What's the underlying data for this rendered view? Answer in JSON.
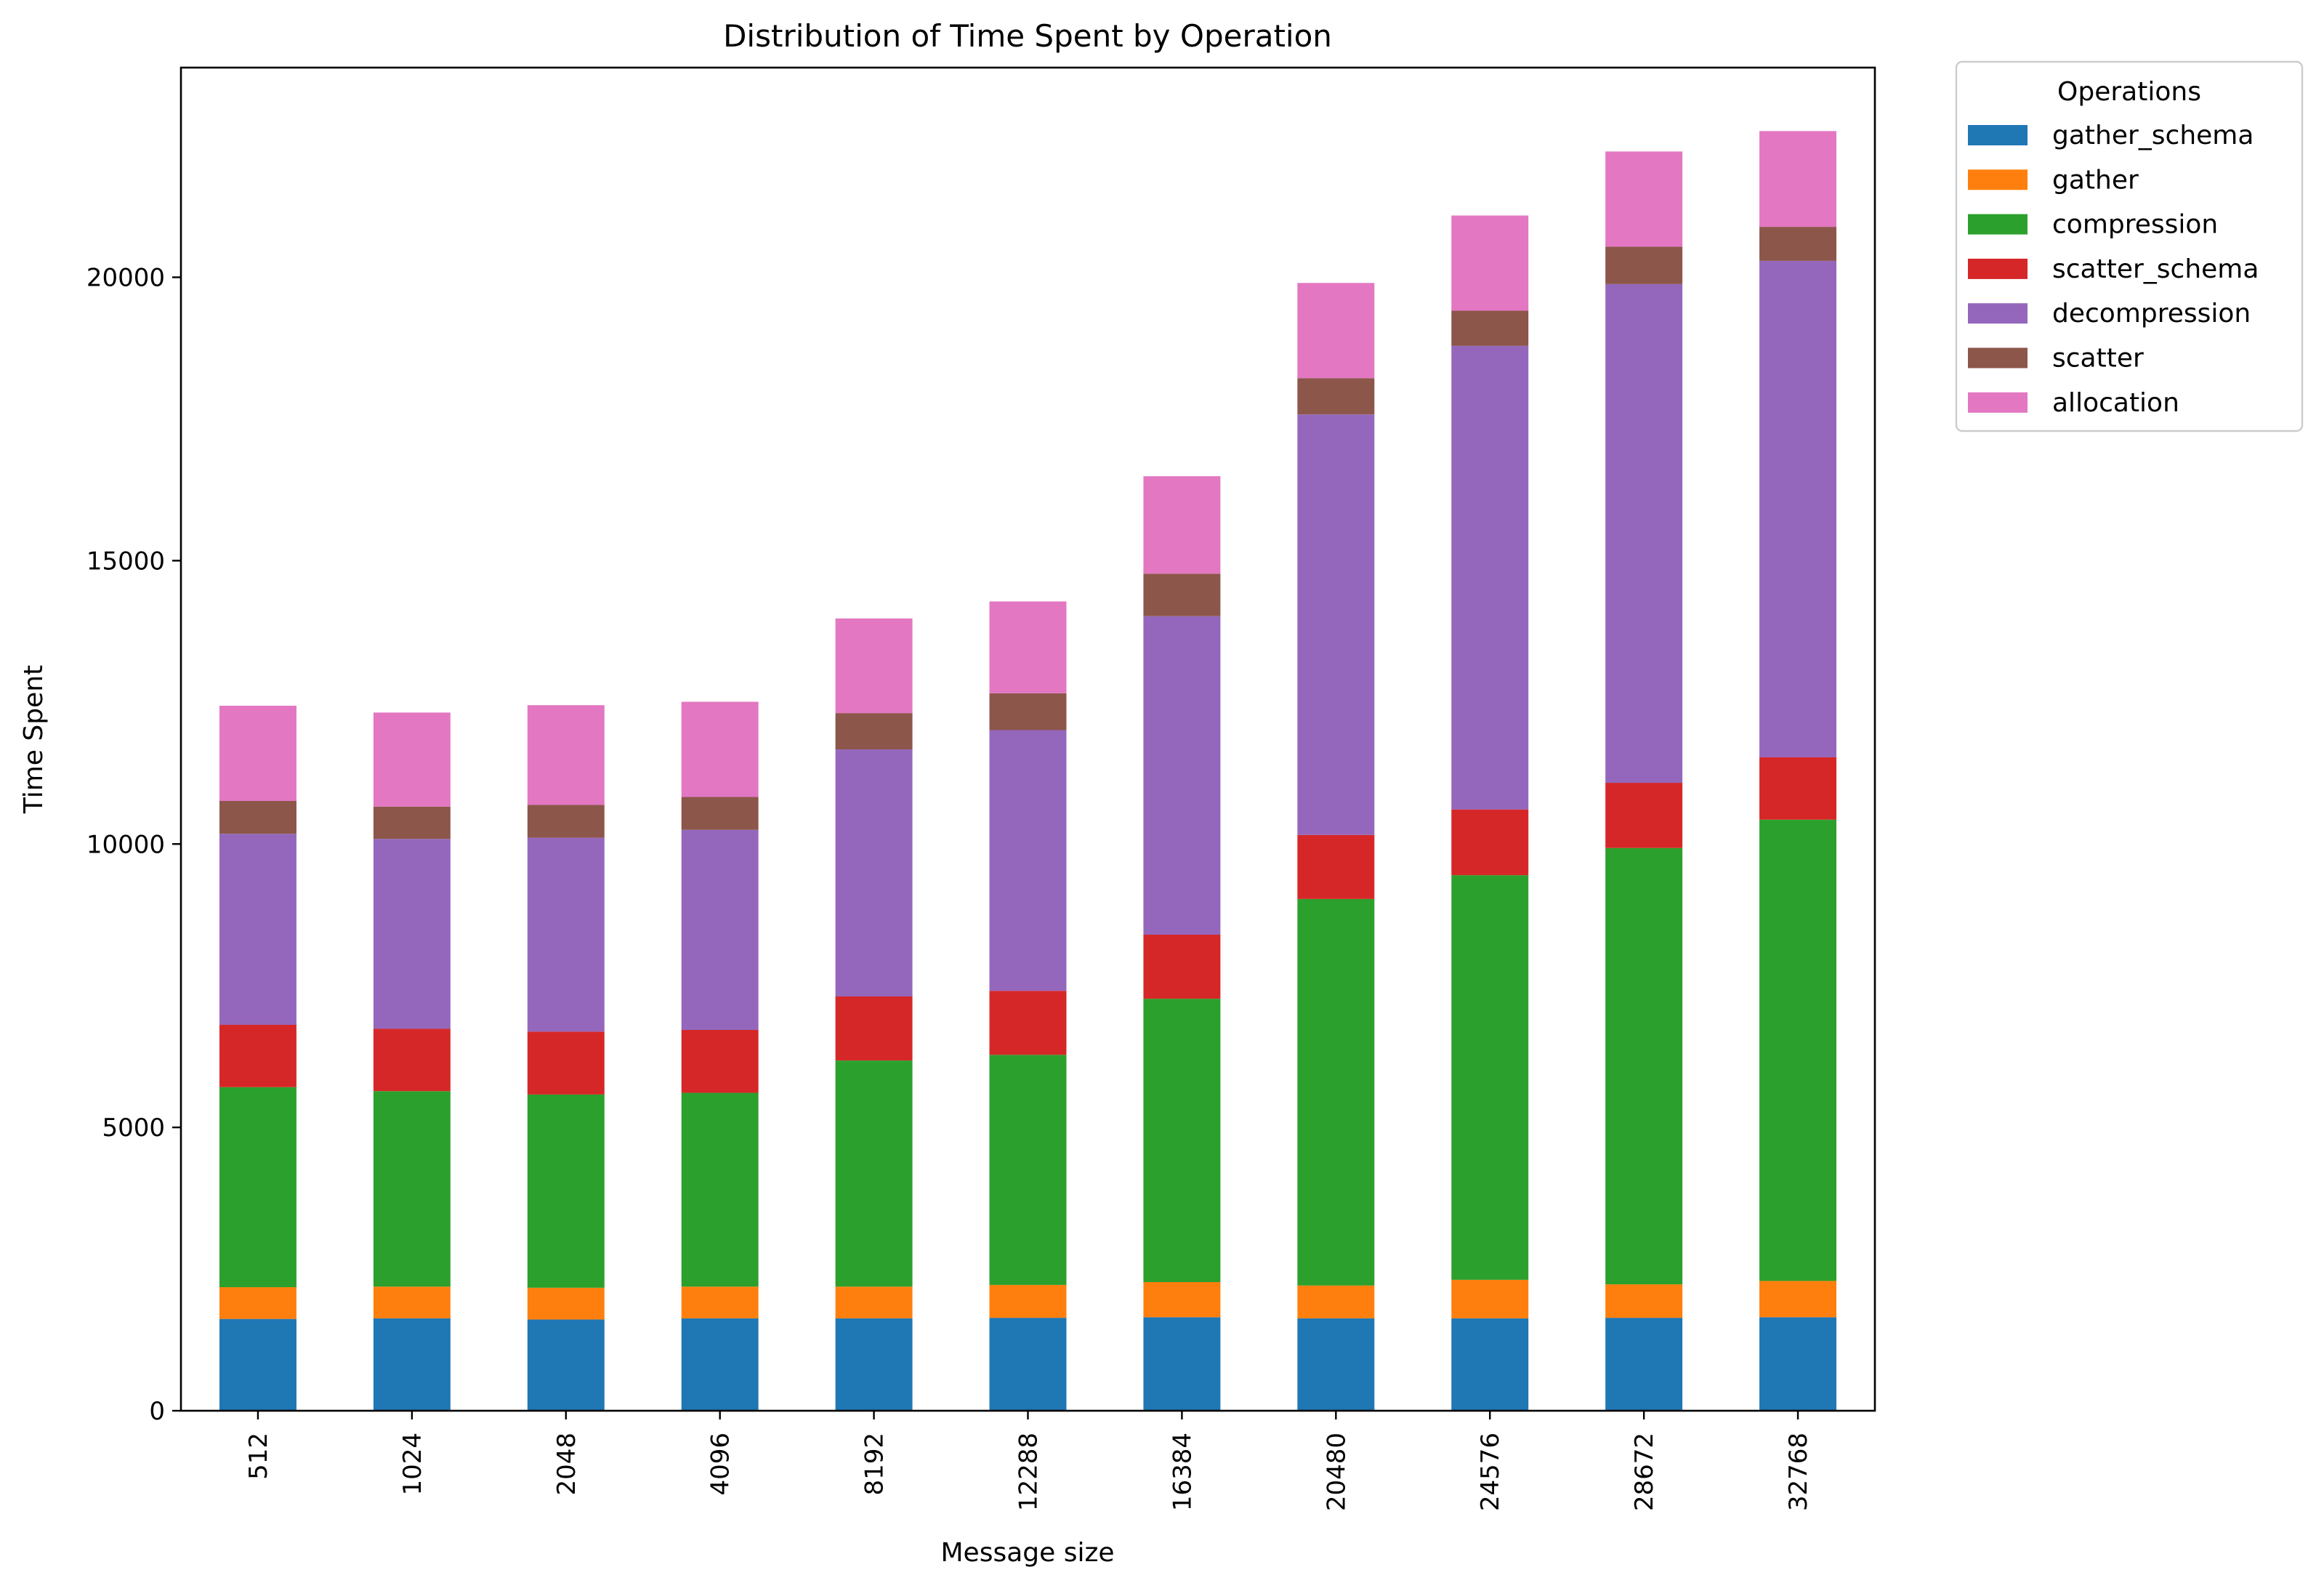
{
  "chart_data": {
    "type": "bar",
    "stacked": true,
    "title": "Distribution of Time Spent by Operation",
    "xlabel": "Message size",
    "ylabel": "Time Spent",
    "ylim": [
      0,
      23700
    ],
    "yticks": [
      0,
      5000,
      10000,
      15000,
      20000
    ],
    "grid": false,
    "legend": {
      "title": "Operations",
      "placement": "outside top-right"
    },
    "categories": [
      "512",
      "1024",
      "2048",
      "4096",
      "8192",
      "12288",
      "16384",
      "20480",
      "24576",
      "28672",
      "32768"
    ],
    "series": [
      {
        "name": "gather_schema",
        "color": "#1f77b4",
        "values": [
          1620,
          1630,
          1610,
          1630,
          1630,
          1640,
          1650,
          1630,
          1630,
          1640,
          1650
        ]
      },
      {
        "name": "gather",
        "color": "#ff7f0e",
        "values": [
          560,
          560,
          560,
          560,
          560,
          580,
          620,
          580,
          680,
          590,
          640
        ]
      },
      {
        "name": "compression",
        "color": "#2ca02c",
        "values": [
          3530,
          3450,
          3410,
          3420,
          3990,
          4060,
          5000,
          6820,
          7140,
          7700,
          8140
        ]
      },
      {
        "name": "scatter_schema",
        "color": "#d62728",
        "values": [
          1100,
          1100,
          1110,
          1110,
          1130,
          1130,
          1130,
          1130,
          1160,
          1150,
          1100
        ]
      },
      {
        "name": "decompression",
        "color": "#9467bd",
        "values": [
          3370,
          3350,
          3420,
          3530,
          4360,
          4600,
          5620,
          7420,
          8180,
          8800,
          8760
        ]
      },
      {
        "name": "scatter",
        "color": "#8c564b",
        "values": [
          580,
          570,
          580,
          580,
          640,
          650,
          750,
          640,
          620,
          660,
          600
        ]
      },
      {
        "name": "allocation",
        "color": "#e377c2",
        "values": [
          1680,
          1660,
          1760,
          1680,
          1670,
          1620,
          1720,
          1680,
          1680,
          1680,
          1690
        ]
      }
    ]
  }
}
